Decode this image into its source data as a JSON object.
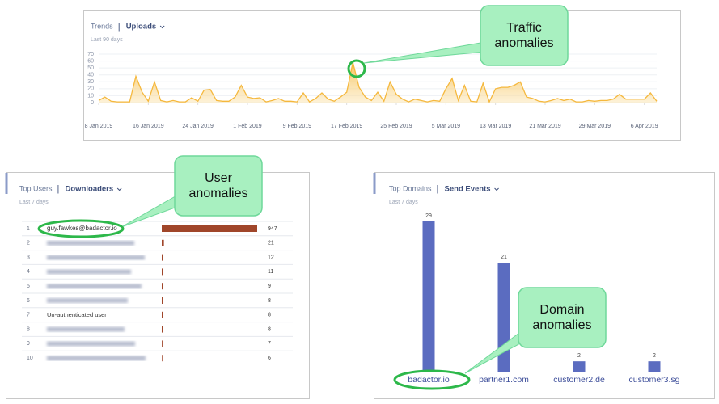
{
  "chart_data": [
    {
      "type": "area",
      "section": "Trends",
      "title": "Uploads",
      "subtitle": "Last 90 days",
      "color": "#f5b83d",
      "x": [
        "2019-01-08",
        "2019-01-09",
        "2019-01-10",
        "2019-01-11",
        "2019-01-12",
        "2019-01-13",
        "2019-01-14",
        "2019-01-15",
        "2019-01-16",
        "2019-01-17",
        "2019-01-18",
        "2019-01-19",
        "2019-01-20",
        "2019-01-21",
        "2019-01-22",
        "2019-01-23",
        "2019-01-24",
        "2019-01-25",
        "2019-01-26",
        "2019-01-27",
        "2019-01-28",
        "2019-01-29",
        "2019-01-30",
        "2019-01-31",
        "2019-02-01",
        "2019-02-02",
        "2019-02-03",
        "2019-02-04",
        "2019-02-05",
        "2019-02-06",
        "2019-02-07",
        "2019-02-08",
        "2019-02-09",
        "2019-02-10",
        "2019-02-11",
        "2019-02-12",
        "2019-02-13",
        "2019-02-14",
        "2019-02-15",
        "2019-02-16",
        "2019-02-17",
        "2019-02-18",
        "2019-02-19",
        "2019-02-20",
        "2019-02-21",
        "2019-02-22",
        "2019-02-23",
        "2019-02-24",
        "2019-02-25",
        "2019-02-26",
        "2019-02-27",
        "2019-02-28",
        "2019-03-01",
        "2019-03-02",
        "2019-03-03",
        "2019-03-04",
        "2019-03-05",
        "2019-03-06",
        "2019-03-07",
        "2019-03-08",
        "2019-03-09",
        "2019-03-10",
        "2019-03-11",
        "2019-03-12",
        "2019-03-13",
        "2019-03-14",
        "2019-03-15",
        "2019-03-16",
        "2019-03-17",
        "2019-03-18",
        "2019-03-19",
        "2019-03-20",
        "2019-03-21",
        "2019-03-22",
        "2019-03-23",
        "2019-03-24",
        "2019-03-25",
        "2019-03-26",
        "2019-03-27",
        "2019-03-28",
        "2019-03-29",
        "2019-03-30",
        "2019-03-31",
        "2019-04-01",
        "2019-04-02",
        "2019-04-03",
        "2019-04-04",
        "2019-04-05",
        "2019-04-06",
        "2019-04-07",
        "2019-04-08"
      ],
      "values": [
        3,
        8,
        2,
        1,
        1,
        1,
        38,
        15,
        2,
        30,
        3,
        1,
        3,
        1,
        1,
        7,
        2,
        18,
        19,
        3,
        2,
        2,
        8,
        25,
        8,
        6,
        7,
        1,
        3,
        6,
        2,
        2,
        1,
        14,
        1,
        6,
        14,
        5,
        2,
        8,
        15,
        58,
        22,
        8,
        3,
        15,
        2,
        30,
        12,
        5,
        1,
        5,
        3,
        1,
        3,
        2,
        20,
        35,
        3,
        25,
        2,
        1,
        28,
        1,
        20,
        22,
        22,
        25,
        30,
        8,
        6,
        2,
        1,
        3,
        6,
        3,
        5,
        1,
        1,
        3,
        2,
        3,
        3,
        5,
        12,
        5,
        5,
        5,
        5,
        14,
        2
      ],
      "ylim": [
        0,
        70
      ],
      "yticks": [
        0,
        10,
        20,
        30,
        40,
        50,
        60,
        70
      ],
      "grid": true,
      "xticks": [
        {
          "value": "2019-01-08",
          "label": "8 Jan 2019"
        },
        {
          "value": "2019-01-16",
          "label": "16 Jan 2019"
        },
        {
          "value": "2019-01-24",
          "label": "24 Jan 2019"
        },
        {
          "value": "2019-02-01",
          "label": "1 Feb 2019"
        },
        {
          "value": "2019-02-09",
          "label": "9 Feb 2019"
        },
        {
          "value": "2019-02-17",
          "label": "17 Feb 2019"
        },
        {
          "value": "2019-02-25",
          "label": "25 Feb 2019"
        },
        {
          "value": "2019-03-05",
          "label": "5 Mar 2019"
        },
        {
          "value": "2019-03-13",
          "label": "13 Mar 2019"
        },
        {
          "value": "2019-03-21",
          "label": "21 Mar 2019"
        },
        {
          "value": "2019-03-29",
          "label": "29 Mar 2019"
        },
        {
          "value": "2019-04-06",
          "label": "6 Apr 2019"
        }
      ]
    },
    {
      "type": "hbar",
      "section": "Top Users",
      "title": "Downloaders",
      "subtitle": "Last 7 days",
      "color": "#a0462a",
      "ranks": [
        1,
        2,
        3,
        4,
        5,
        6,
        7,
        8,
        9,
        10
      ],
      "categories": [
        "guy.fawkes@badactor.io",
        null,
        null,
        null,
        null,
        null,
        "Un-authenticated user",
        null,
        null,
        null
      ],
      "values": [
        947,
        21,
        12,
        11,
        9,
        8,
        8,
        8,
        7,
        6
      ]
    },
    {
      "type": "bar",
      "section": "Top Domains",
      "title": "Send Events",
      "subtitle": "Last 7 days",
      "color": "#5b6cc0",
      "categories": [
        "badactor.io",
        "partner1.com",
        "customer2.de",
        "customer3.sg"
      ],
      "values": [
        29,
        21,
        2,
        2
      ]
    }
  ],
  "callouts": [
    "Traffic anomalies",
    "User anomalies",
    "Domain anomalies"
  ]
}
